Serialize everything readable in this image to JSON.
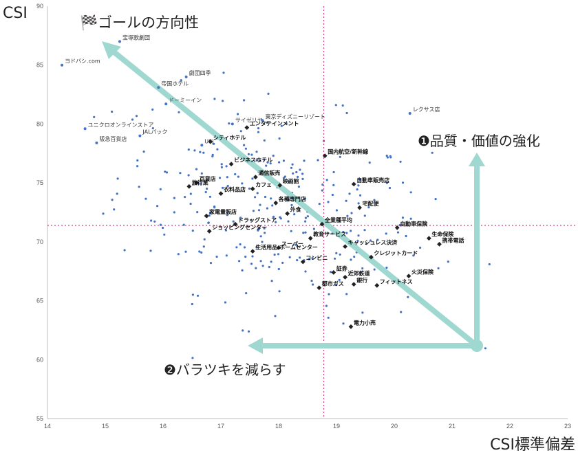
{
  "chart_data": {
    "type": "scatter",
    "title": "",
    "xlabel": "CSI標準偏差",
    "ylabel": "CSI",
    "xlim": [
      14,
      23
    ],
    "ylim": [
      55,
      90
    ],
    "xticks": [
      14,
      15,
      16,
      17,
      18,
      19,
      20,
      21,
      22,
      23
    ],
    "yticks": [
      55,
      60,
      65,
      70,
      75,
      80,
      85,
      90
    ],
    "x_tick_labels": [
      "14",
      "15",
      "16",
      "17",
      "18",
      "19",
      "20",
      "21",
      "22",
      "23"
    ],
    "y_tick_labels": [
      "55",
      "60",
      "65",
      "70",
      "75",
      "80",
      "85",
      "90"
    ],
    "grid": false,
    "reference_lines": {
      "x": 18.78,
      "y": 71.4
    },
    "colors": {
      "points": "#4472c4",
      "industry_points": "#222222",
      "arrow": "#9fd8d0",
      "reference": "#d63384",
      "axis": "#bfbfbf"
    },
    "goal_label": "🏁ゴールの方向性",
    "arrow_labels": {
      "up": "❶品質・価値の強化",
      "left": "❷バラツキを減らす"
    },
    "labeled_points": [
      {
        "label": "宝塚歌劇団",
        "x": 15.25,
        "y": 87.0,
        "bold": false
      },
      {
        "label": "ヨドバシ.com",
        "x": 14.25,
        "y": 85.0,
        "bold": false
      },
      {
        "label": "劇団四季",
        "x": 16.4,
        "y": 84.0,
        "bold": false
      },
      {
        "label": "帝国ホテル",
        "x": 15.92,
        "y": 83.1,
        "bold": false
      },
      {
        "label": "ドーミーイン",
        "x": 16.05,
        "y": 81.7,
        "bold": false
      },
      {
        "label": "レクサス店",
        "x": 20.27,
        "y": 80.9,
        "bold": false
      },
      {
        "label": "東京ディズニーリゾート",
        "x": 17.72,
        "y": 80.3,
        "bold": false
      },
      {
        "label": "サイゼリヤ",
        "x": 17.2,
        "y": 80.0,
        "bold": false
      },
      {
        "label": "ユニクロオンラインストア",
        "x": 14.65,
        "y": 79.6,
        "bold": false
      },
      {
        "label": "エンタテインメント",
        "x": 17.45,
        "y": 79.7,
        "bold": true
      },
      {
        "label": "JALパック",
        "x": 15.6,
        "y": 79.0,
        "bold": false
      },
      {
        "label": "阪急百貨店",
        "x": 14.85,
        "y": 78.4,
        "bold": false
      },
      {
        "label": "USJ",
        "x": 16.67,
        "y": 78.2,
        "bold": false
      },
      {
        "label": "シティホテル",
        "x": 16.82,
        "y": 78.5,
        "bold": true
      },
      {
        "label": "国内航空/新幹線",
        "x": 18.8,
        "y": 77.3,
        "bold": true
      },
      {
        "label": "ビジネスホテル",
        "x": 17.18,
        "y": 76.6,
        "bold": true
      },
      {
        "label": "通信販売",
        "x": 17.6,
        "y": 75.5,
        "bold": true
      },
      {
        "label": "自動車販売店",
        "x": 19.3,
        "y": 74.9,
        "bold": true
      },
      {
        "label": "映画館",
        "x": 18.02,
        "y": 74.8,
        "bold": true
      },
      {
        "label": "百貨店",
        "x": 16.58,
        "y": 75.0,
        "bold": true
      },
      {
        "label": "旅行業",
        "x": 16.45,
        "y": 74.7,
        "bold": true
      },
      {
        "label": "カフェ",
        "x": 17.55,
        "y": 74.5,
        "bold": true
      },
      {
        "label": "衣料品店",
        "x": 17.0,
        "y": 74.1,
        "bold": true
      },
      {
        "label": "各種専門店",
        "x": 17.95,
        "y": 73.3,
        "bold": true
      },
      {
        "label": "宅配便",
        "x": 19.4,
        "y": 72.9,
        "bold": true
      },
      {
        "label": "家電量販店",
        "x": 16.75,
        "y": 72.2,
        "bold": true
      },
      {
        "label": "外食",
        "x": 18.15,
        "y": 72.4,
        "bold": true
      },
      {
        "label": "全業種平均",
        "x": 18.75,
        "y": 71.5,
        "bold": true
      },
      {
        "label": "ドラッグストア",
        "x": 17.25,
        "y": 71.5,
        "bold": true
      },
      {
        "label": "自動車保険",
        "x": 20.05,
        "y": 71.2,
        "bold": true
      },
      {
        "label": "生命保険",
        "x": 20.6,
        "y": 70.3,
        "bold": true
      },
      {
        "label": "ショッピングセンター",
        "x": 16.8,
        "y": 70.9,
        "bold": true
      },
      {
        "label": "携帯電話",
        "x": 20.78,
        "y": 69.8,
        "bold": true
      },
      {
        "label": "教育サービス",
        "x": 18.55,
        "y": 70.3,
        "bold": true
      },
      {
        "label": "キャッシュレス決済",
        "x": 19.15,
        "y": 69.6,
        "bold": true
      },
      {
        "label": "スーパー",
        "x": 18.0,
        "y": 69.5,
        "bold": true
      },
      {
        "label": "生活用品/ホームセンター",
        "x": 17.55,
        "y": 69.2,
        "bold": true
      },
      {
        "label": "クレジットカード",
        "x": 19.6,
        "y": 68.7,
        "bold": true
      },
      {
        "label": "コンビニ",
        "x": 18.42,
        "y": 68.3,
        "bold": true
      },
      {
        "label": "証券",
        "x": 18.95,
        "y": 67.4,
        "bold": true
      },
      {
        "label": "近郊鉄道",
        "x": 19.15,
        "y": 67.0,
        "bold": true
      },
      {
        "label": "火災保険",
        "x": 20.25,
        "y": 67.1,
        "bold": true
      },
      {
        "label": "銀行",
        "x": 19.3,
        "y": 66.4,
        "bold": true
      },
      {
        "label": "フィットネス",
        "x": 19.7,
        "y": 66.3,
        "bold": true
      },
      {
        "label": "都市ガス",
        "x": 18.7,
        "y": 66.1,
        "bold": true
      },
      {
        "label": "電力小売",
        "x": 19.25,
        "y": 62.8,
        "bold": true
      }
    ]
  }
}
